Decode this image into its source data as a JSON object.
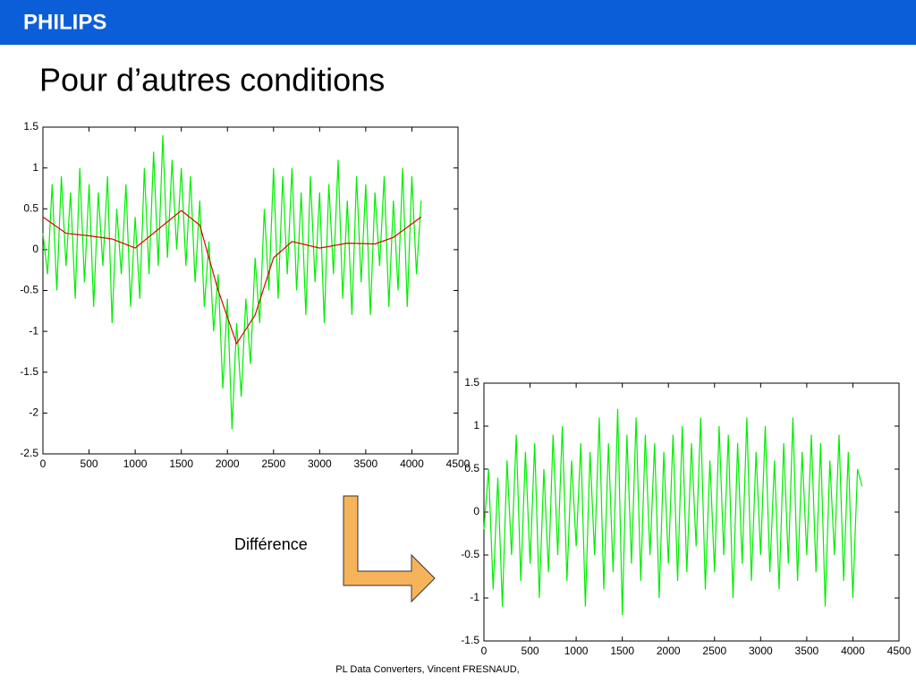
{
  "header": {
    "logo": "PHILIPS"
  },
  "title": "Pour d’autres conditions",
  "annotation": "Différence",
  "footer": "PL Data Converters, Vincent FRESNAUD,",
  "chart_data": [
    {
      "type": "line",
      "xlim": [
        0,
        4500
      ],
      "ylim": [
        -2.5,
        1.5
      ],
      "xticks": [
        0,
        500,
        1000,
        1500,
        2000,
        2500,
        3000,
        3500,
        4000,
        4500
      ],
      "yticks": [
        -2.5,
        -2,
        -1.5,
        -1,
        -0.5,
        0,
        0.5,
        1,
        1.5
      ],
      "series": [
        {
          "color": "#00ee00",
          "x": [
            0,
            50,
            100,
            150,
            200,
            250,
            300,
            350,
            400,
            450,
            500,
            550,
            600,
            650,
            700,
            750,
            800,
            850,
            900,
            950,
            1000,
            1050,
            1100,
            1150,
            1200,
            1250,
            1300,
            1350,
            1400,
            1450,
            1500,
            1550,
            1600,
            1650,
            1700,
            1750,
            1800,
            1850,
            1900,
            1950,
            2000,
            2050,
            2100,
            2150,
            2200,
            2250,
            2300,
            2350,
            2400,
            2450,
            2500,
            2550,
            2600,
            2650,
            2700,
            2750,
            2800,
            2850,
            2900,
            2950,
            3000,
            3050,
            3100,
            3150,
            3200,
            3250,
            3300,
            3350,
            3400,
            3450,
            3500,
            3550,
            3600,
            3650,
            3700,
            3750,
            3800,
            3850,
            3900,
            3950,
            4000,
            4050,
            4100
          ],
          "values": [
            0.2,
            -0.3,
            0.8,
            -0.5,
            0.9,
            -0.2,
            0.7,
            -0.6,
            1.0,
            -0.4,
            0.8,
            -0.7,
            0.7,
            -0.2,
            0.9,
            -0.9,
            0.5,
            -0.3,
            0.8,
            -0.7,
            0.4,
            -0.6,
            1.0,
            -0.3,
            1.2,
            -0.2,
            1.4,
            -0.1,
            1.1,
            0.0,
            1.0,
            -0.2,
            0.9,
            -0.4,
            0.6,
            -0.7,
            0.1,
            -1.0,
            -0.3,
            -1.7,
            -0.6,
            -2.2,
            -0.9,
            -1.8,
            -0.6,
            -1.4,
            -0.1,
            -0.9,
            0.5,
            -0.5,
            1.0,
            -0.6,
            0.9,
            -0.3,
            1.0,
            -0.5,
            0.7,
            -0.8,
            0.9,
            -0.4,
            0.7,
            -0.9,
            0.8,
            -0.3,
            1.1,
            -0.6,
            0.6,
            -0.8,
            0.9,
            -0.4,
            0.8,
            -0.8,
            0.7,
            -0.2,
            0.9,
            -0.7,
            0.6,
            -0.5,
            1.0,
            -0.7,
            0.9,
            -0.3,
            0.6
          ]
        },
        {
          "color": "#dd0000",
          "x": [
            0,
            250,
            500,
            750,
            1000,
            1250,
            1500,
            1700,
            1900,
            2100,
            2300,
            2500,
            2700,
            3000,
            3300,
            3600,
            3800,
            4100
          ],
          "values": [
            0.4,
            0.2,
            0.17,
            0.13,
            0.02,
            0.25,
            0.48,
            0.3,
            -0.5,
            -1.15,
            -0.8,
            -0.1,
            0.1,
            0.02,
            0.08,
            0.07,
            0.15,
            0.4
          ]
        }
      ]
    },
    {
      "type": "line",
      "xlim": [
        0,
        4500
      ],
      "ylim": [
        -1.5,
        1.5
      ],
      "xticks": [
        0,
        500,
        1000,
        1500,
        2000,
        2500,
        3000,
        3500,
        4000,
        4500
      ],
      "yticks": [
        -1.5,
        -1,
        -0.5,
        0,
        0.5,
        1,
        1.5
      ],
      "series": [
        {
          "color": "#00ee00",
          "x": [
            0,
            50,
            100,
            150,
            200,
            250,
            300,
            350,
            400,
            450,
            500,
            550,
            600,
            650,
            700,
            750,
            800,
            850,
            900,
            950,
            1000,
            1050,
            1100,
            1150,
            1200,
            1250,
            1300,
            1350,
            1400,
            1450,
            1500,
            1550,
            1600,
            1650,
            1700,
            1750,
            1800,
            1850,
            1900,
            1950,
            2000,
            2050,
            2100,
            2150,
            2200,
            2250,
            2300,
            2350,
            2400,
            2450,
            2500,
            2550,
            2600,
            2650,
            2700,
            2750,
            2800,
            2850,
            2900,
            2950,
            3000,
            3050,
            3100,
            3150,
            3200,
            3250,
            3300,
            3350,
            3400,
            3450,
            3500,
            3550,
            3600,
            3650,
            3700,
            3750,
            3800,
            3850,
            3900,
            3950,
            4000,
            4050,
            4100
          ],
          "values": [
            -0.2,
            0.5,
            -0.9,
            0.4,
            -1.1,
            0.6,
            -0.5,
            0.9,
            -0.8,
            0.7,
            -0.6,
            0.8,
            -1.0,
            0.5,
            -0.7,
            0.9,
            -0.5,
            1.0,
            -0.8,
            0.6,
            -0.4,
            0.8,
            -1.1,
            0.7,
            -0.5,
            1.1,
            -0.9,
            0.8,
            -0.7,
            1.2,
            -1.2,
            0.9,
            -0.6,
            1.1,
            -0.8,
            0.9,
            -0.5,
            0.8,
            -1.0,
            0.7,
            -0.6,
            0.9,
            -0.8,
            1.0,
            -0.7,
            0.8,
            -0.4,
            1.1,
            -0.9,
            0.6,
            -0.7,
            1.0,
            -0.5,
            0.9,
            -1.0,
            0.8,
            -0.6,
            1.1,
            -0.8,
            0.7,
            -0.5,
            1.0,
            -0.7,
            0.6,
            -0.9,
            0.8,
            -0.6,
            1.1,
            -0.8,
            0.7,
            -0.5,
            0.9,
            -0.7,
            0.8,
            -1.1,
            0.6,
            -0.5,
            0.9,
            -0.8,
            0.7,
            -1.0,
            0.5,
            0.3
          ]
        }
      ]
    }
  ]
}
